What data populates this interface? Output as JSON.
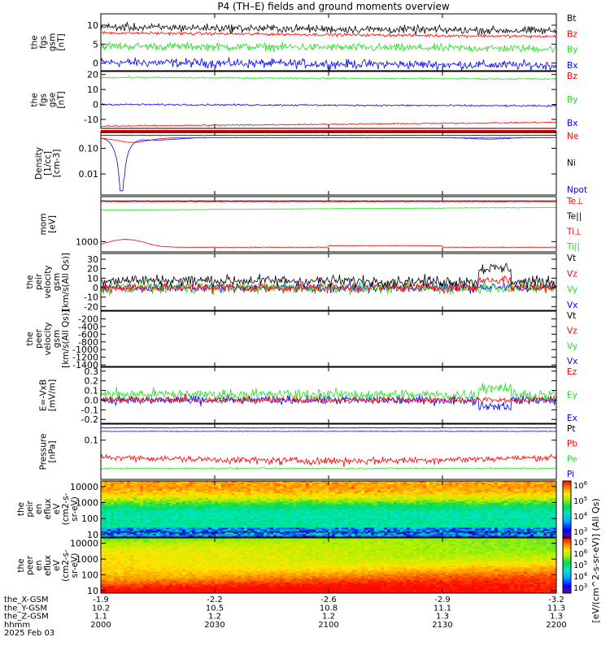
{
  "title": "P4 (TH–E) fields and ground moments overview",
  "colors": {
    "black": "#000000",
    "red": "#ff0000",
    "green": "#22dd22",
    "blue": "#0000ff"
  },
  "chart_data": [
    {
      "id": "fgs",
      "type": "line",
      "ylabel": [
        "the",
        "fgs",
        "gsm",
        "[nT]"
      ],
      "yticks": [
        0,
        5,
        10
      ],
      "ylim": [
        -2,
        13
      ],
      "series": [
        {
          "name": "Bt",
          "color": "black",
          "start": 9.5,
          "end": 8.5,
          "noise": 1.6
        },
        {
          "name": "Bz",
          "color": "red",
          "start": 8.0,
          "end": 7.0,
          "noise": 0.6
        },
        {
          "name": "By",
          "color": "green",
          "start": 4.5,
          "end": 3.8,
          "noise": 1.6
        },
        {
          "name": "Bx",
          "color": "blue",
          "start": 0.2,
          "end": -0.6,
          "noise": 1.8
        }
      ]
    },
    {
      "id": "fgs-gse",
      "type": "line",
      "ylabel": [
        "the",
        "fgs",
        "gse",
        "[nT]"
      ],
      "yticks": [
        -10,
        0,
        10,
        20
      ],
      "ylim": [
        -16,
        22
      ],
      "series": [
        {
          "name": "Bz",
          "color": "red",
          "start": -14.5,
          "end": -12.0,
          "noise": 0.7
        },
        {
          "name": "By",
          "color": "green",
          "start": 18.0,
          "end": 17.0,
          "noise": 0.8
        },
        {
          "name": "Bx",
          "color": "blue",
          "start": 0.0,
          "end": -1.0,
          "noise": 0.9
        }
      ]
    },
    {
      "id": "density",
      "type": "line",
      "log": true,
      "ylabel": [
        "Density",
        "[1/cc]",
        "[cm-3]"
      ],
      "yticks": [
        0.01,
        0.1
      ],
      "ytick_labels": [
        "0.01",
        "0.10"
      ],
      "ylim": [
        0.0015,
        0.45
      ],
      "series": [
        {
          "name": "Ne",
          "color": "red"
        },
        {
          "name": "Ni",
          "color": "black"
        },
        {
          "name": "Npot",
          "color": "blue"
        }
      ]
    },
    {
      "id": "temp",
      "type": "line",
      "log": true,
      "ylabel": [
        "mom",
        "[eV]"
      ],
      "yticks": [
        1000
      ],
      "ytick_labels": [
        "1000"
      ],
      "ylim": [
        350,
        100000
      ],
      "series": [
        {
          "name": "Te⊥",
          "color": "red"
        },
        {
          "name": "Te||",
          "color": "black"
        },
        {
          "name": "Ti⊥",
          "color": "red"
        },
        {
          "name": "Ti||",
          "color": "green"
        }
      ]
    },
    {
      "id": "peir-vel",
      "type": "line",
      "ylabel": [
        "the",
        "peir",
        "velocity",
        "gsm",
        "[km/s(All Qs)]"
      ],
      "yticks": [
        -20,
        -10,
        0,
        10,
        20,
        30
      ],
      "ylim": [
        -24,
        36
      ],
      "series": [
        {
          "name": "Vt",
          "color": "black",
          "start": 8,
          "end": 6,
          "noise": 9
        },
        {
          "name": "Vz",
          "color": "red",
          "start": 0,
          "end": 0,
          "noise": 8
        },
        {
          "name": "Vy",
          "color": "green",
          "start": 0,
          "end": 0,
          "noise": 9
        },
        {
          "name": "Vx",
          "color": "blue",
          "start": 0,
          "end": 0,
          "noise": 7
        }
      ]
    },
    {
      "id": "peer-vel",
      "type": "line",
      "ylabel": [
        "the",
        "peer",
        "velocity",
        "gsm",
        "[km/s(All Qs)]"
      ],
      "yticks": [
        -1400,
        -1200,
        -1000,
        -800,
        -600,
        -400,
        -200
      ],
      "ylim": [
        -1440,
        0
      ],
      "series": [
        {
          "name": "Vt",
          "color": "black"
        },
        {
          "name": "Vz",
          "color": "red"
        },
        {
          "name": "Vy",
          "color": "green"
        },
        {
          "name": "Vx",
          "color": "blue"
        }
      ]
    },
    {
      "id": "efield",
      "type": "line",
      "ylabel": [
        "E=-VxB",
        "[mV/m]"
      ],
      "yticks": [
        -0.2,
        -0.1,
        0.0,
        0.1,
        0.2,
        0.3
      ],
      "ytick_labels": [
        "-0.2",
        "-0.1",
        "0.0",
        "0.1",
        "0.2",
        "0.3"
      ],
      "ylim": [
        -0.24,
        0.34
      ],
      "series": [
        {
          "name": "Ez",
          "color": "red",
          "start": 0.0,
          "end": 0.0,
          "noise": 0.05
        },
        {
          "name": "Ey",
          "color": "green",
          "start": 0.06,
          "end": 0.05,
          "noise": 0.09
        },
        {
          "name": "Ex",
          "color": "blue",
          "start": 0.0,
          "end": 0.0,
          "noise": 0.07
        }
      ]
    },
    {
      "id": "pressure",
      "type": "line",
      "log": true,
      "ylabel": [
        "Pressure",
        "[nPa]"
      ],
      "yticks": [
        0.1
      ],
      "ytick_labels": [
        "0.1"
      ],
      "ylim": [
        0.003,
        0.42
      ],
      "series": [
        {
          "name": "Pt",
          "color": "black"
        },
        {
          "name": "Pb",
          "color": "red"
        },
        {
          "name": "Pe",
          "color": "green"
        },
        {
          "name": "Pi",
          "color": "blue"
        }
      ]
    },
    {
      "id": "peir-spec",
      "type": "heatmap",
      "log": true,
      "ylabel": [
        "the",
        "peir",
        "en",
        "eflux",
        "eV",
        "(cm2-s-",
        "sr-eV)"
      ],
      "yticks": [
        10,
        100,
        1000,
        10000
      ],
      "ytick_labels": [
        "10",
        "100",
        "1000",
        "10000"
      ],
      "ylim": [
        7,
        22000
      ],
      "colorbar": {
        "exponents": [
          3,
          4,
          5,
          6
        ]
      }
    },
    {
      "id": "peer-spec",
      "type": "heatmap",
      "log": true,
      "ylabel": [
        "the",
        "peer",
        "en",
        "eflux",
        "eV",
        "(cm2-s-",
        "sr-eV)"
      ],
      "yticks": [
        10,
        100,
        1000,
        10000
      ],
      "ytick_labels": [
        "10",
        "100",
        "1000",
        "10000"
      ],
      "ylim": [
        7,
        22000
      ],
      "colorbar": {
        "exponents": [
          3,
          4,
          5,
          6,
          7
        ]
      }
    }
  ],
  "colorbar_label": "[eV/(cm^2-s-sr-eV)] (All Qs)",
  "xaxis": {
    "labels": [
      "the_X-GSM",
      "the_Y-GSM",
      "the_Z-GSM",
      "hhmm",
      "2025 Feb 03"
    ],
    "times": [
      2000,
      2030,
      2100,
      2130,
      2200
    ],
    "rows": [
      [
        "-1.9",
        "-2.2",
        "-2.6",
        "-2.9",
        "-3.2"
      ],
      [
        "10.2",
        "10.5",
        "10.8",
        "11.1",
        "11.3"
      ],
      [
        "1.1",
        "1.2",
        "1.2",
        "1.3",
        "1.3"
      ],
      [
        "2000",
        "2030",
        "2100",
        "2130",
        "2200"
      ]
    ]
  }
}
